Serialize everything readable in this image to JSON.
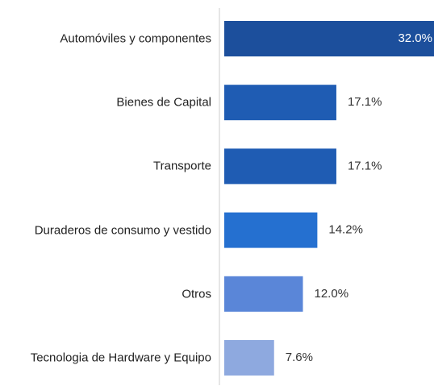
{
  "chart_data": {
    "type": "bar",
    "orientation": "horizontal",
    "categories": [
      "Automóviles y componentes",
      "Bienes de Capital",
      "Transporte",
      "Duraderos de consumo y vestido",
      "Otros",
      "Tecnologia de Hardware y Equipo"
    ],
    "values": [
      32.0,
      17.1,
      17.1,
      14.2,
      12.0,
      7.6
    ],
    "value_labels": [
      "32.0%",
      "17.1%",
      "17.1%",
      "14.2%",
      "12.0%",
      "7.6%"
    ],
    "colors": [
      "#1c4f9c",
      "#1f5cb3",
      "#1f5cb3",
      "#2570d0",
      "#5a86d8",
      "#8ea9df"
    ],
    "xlim": [
      0,
      32
    ]
  }
}
